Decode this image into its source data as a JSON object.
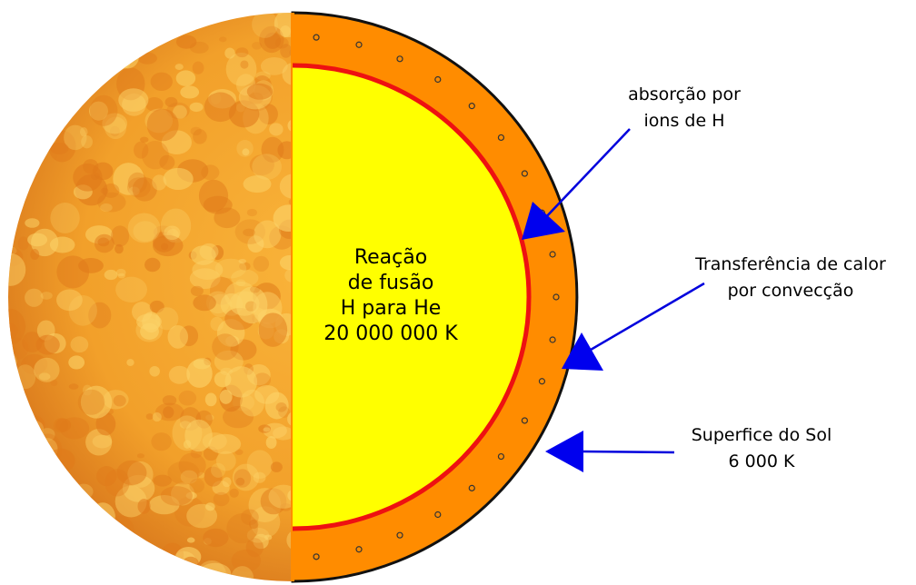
{
  "core_label": {
    "lines": [
      "Reação",
      "de fusão",
      "H para He",
      "20 000 000 K"
    ]
  },
  "annotations": [
    {
      "lines": [
        "absorção por",
        "ions de H"
      ]
    },
    {
      "lines": [
        "Transferência de calor",
        "por convecção"
      ]
    },
    {
      "lines": [
        "Superfice do Sol",
        "6 000 K"
      ]
    }
  ]
}
